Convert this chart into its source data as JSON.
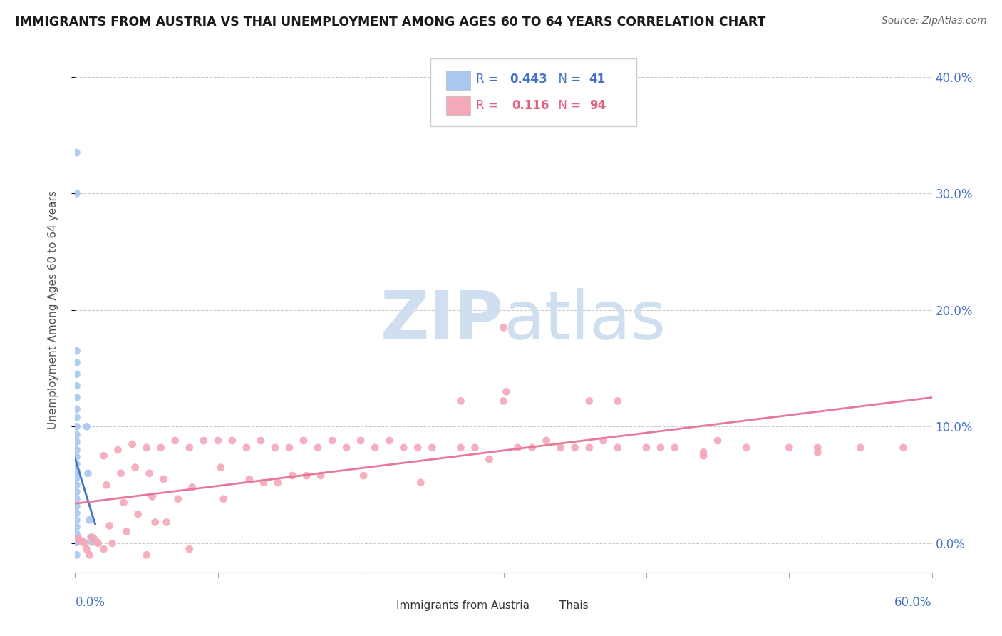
{
  "title": "IMMIGRANTS FROM AUSTRIA VS THAI UNEMPLOYMENT AMONG AGES 60 TO 64 YEARS CORRELATION CHART",
  "source": "Source: ZipAtlas.com",
  "ylabel": "Unemployment Among Ages 60 to 64 years",
  "xlim": [
    0.0,
    0.6
  ],
  "ylim": [
    -0.025,
    0.425
  ],
  "yticks": [
    0.0,
    0.1,
    0.2,
    0.3,
    0.4
  ],
  "ytick_labels_right": [
    "0.0%",
    "10.0%",
    "20.0%",
    "30.0%",
    "40.0%"
  ],
  "legend_r_austria": "0.443",
  "legend_n_austria": "41",
  "legend_r_thai": "0.116",
  "legend_n_thai": "94",
  "austria_color": "#a8c8f0",
  "thai_color": "#f4a8b8",
  "austria_line_color": "#4472c4",
  "thai_line_color": "#e87898",
  "watermark_color": "#d0dff0",
  "austria_scatter_x": [
    0.001,
    0.001,
    0.001,
    0.001,
    0.001,
    0.001,
    0.001,
    0.001,
    0.001,
    0.001,
    0.001,
    0.001,
    0.001,
    0.001,
    0.001,
    0.001,
    0.001,
    0.001,
    0.001,
    0.001,
    0.001,
    0.001,
    0.001,
    0.001,
    0.001,
    0.001,
    0.001,
    0.001,
    0.001,
    0.001,
    0.001,
    0.001,
    0.008,
    0.009,
    0.01,
    0.011,
    0.012,
    0.001,
    0.001,
    0.001,
    0.001
  ],
  "austria_scatter_y": [
    0.335,
    0.3,
    0.165,
    0.155,
    0.145,
    0.135,
    0.125,
    0.115,
    0.108,
    0.1,
    0.093,
    0.087,
    0.08,
    0.074,
    0.068,
    0.062,
    0.056,
    0.05,
    0.044,
    0.038,
    0.032,
    0.026,
    0.02,
    0.014,
    0.008,
    0.004,
    0.001,
    0.001,
    0.001,
    0.001,
    0.001,
    0.001,
    0.1,
    0.06,
    0.02,
    0.005,
    0.001,
    0.001,
    0.001,
    0.001,
    -0.01
  ],
  "thai_scatter_x": [
    0.002,
    0.003,
    0.004,
    0.005,
    0.006,
    0.007,
    0.008,
    0.012,
    0.013,
    0.014,
    0.015,
    0.016,
    0.02,
    0.022,
    0.024,
    0.026,
    0.03,
    0.032,
    0.034,
    0.036,
    0.04,
    0.042,
    0.044,
    0.05,
    0.052,
    0.054,
    0.056,
    0.06,
    0.062,
    0.064,
    0.07,
    0.072,
    0.08,
    0.082,
    0.09,
    0.1,
    0.102,
    0.104,
    0.11,
    0.12,
    0.122,
    0.13,
    0.132,
    0.14,
    0.142,
    0.15,
    0.152,
    0.16,
    0.162,
    0.17,
    0.172,
    0.18,
    0.19,
    0.2,
    0.202,
    0.21,
    0.22,
    0.23,
    0.24,
    0.242,
    0.25,
    0.27,
    0.28,
    0.29,
    0.3,
    0.302,
    0.31,
    0.32,
    0.33,
    0.34,
    0.35,
    0.36,
    0.37,
    0.38,
    0.4,
    0.41,
    0.42,
    0.44,
    0.45,
    0.47,
    0.5,
    0.52,
    0.55,
    0.58,
    0.27,
    0.3,
    0.36,
    0.38,
    0.44,
    0.52,
    0.01,
    0.02,
    0.05,
    0.08
  ],
  "thai_scatter_y": [
    0.004,
    0.003,
    0.002,
    0.001,
    0.001,
    0.0,
    -0.005,
    0.005,
    0.004,
    0.002,
    0.001,
    0.0,
    0.075,
    0.05,
    0.015,
    0.0,
    0.08,
    0.06,
    0.035,
    0.01,
    0.085,
    0.065,
    0.025,
    0.082,
    0.06,
    0.04,
    0.018,
    0.082,
    0.055,
    0.018,
    0.088,
    0.038,
    0.082,
    0.048,
    0.088,
    0.088,
    0.065,
    0.038,
    0.088,
    0.082,
    0.055,
    0.088,
    0.052,
    0.082,
    0.052,
    0.082,
    0.058,
    0.088,
    0.058,
    0.082,
    0.058,
    0.088,
    0.082,
    0.088,
    0.058,
    0.082,
    0.088,
    0.082,
    0.082,
    0.052,
    0.082,
    0.082,
    0.082,
    0.072,
    0.185,
    0.13,
    0.082,
    0.082,
    0.088,
    0.082,
    0.082,
    0.082,
    0.088,
    0.082,
    0.082,
    0.082,
    0.082,
    0.075,
    0.088,
    0.082,
    0.082,
    0.082,
    0.082,
    0.082,
    0.122,
    0.122,
    0.122,
    0.122,
    0.078,
    0.078,
    -0.01,
    -0.005,
    -0.01,
    -0.005
  ]
}
